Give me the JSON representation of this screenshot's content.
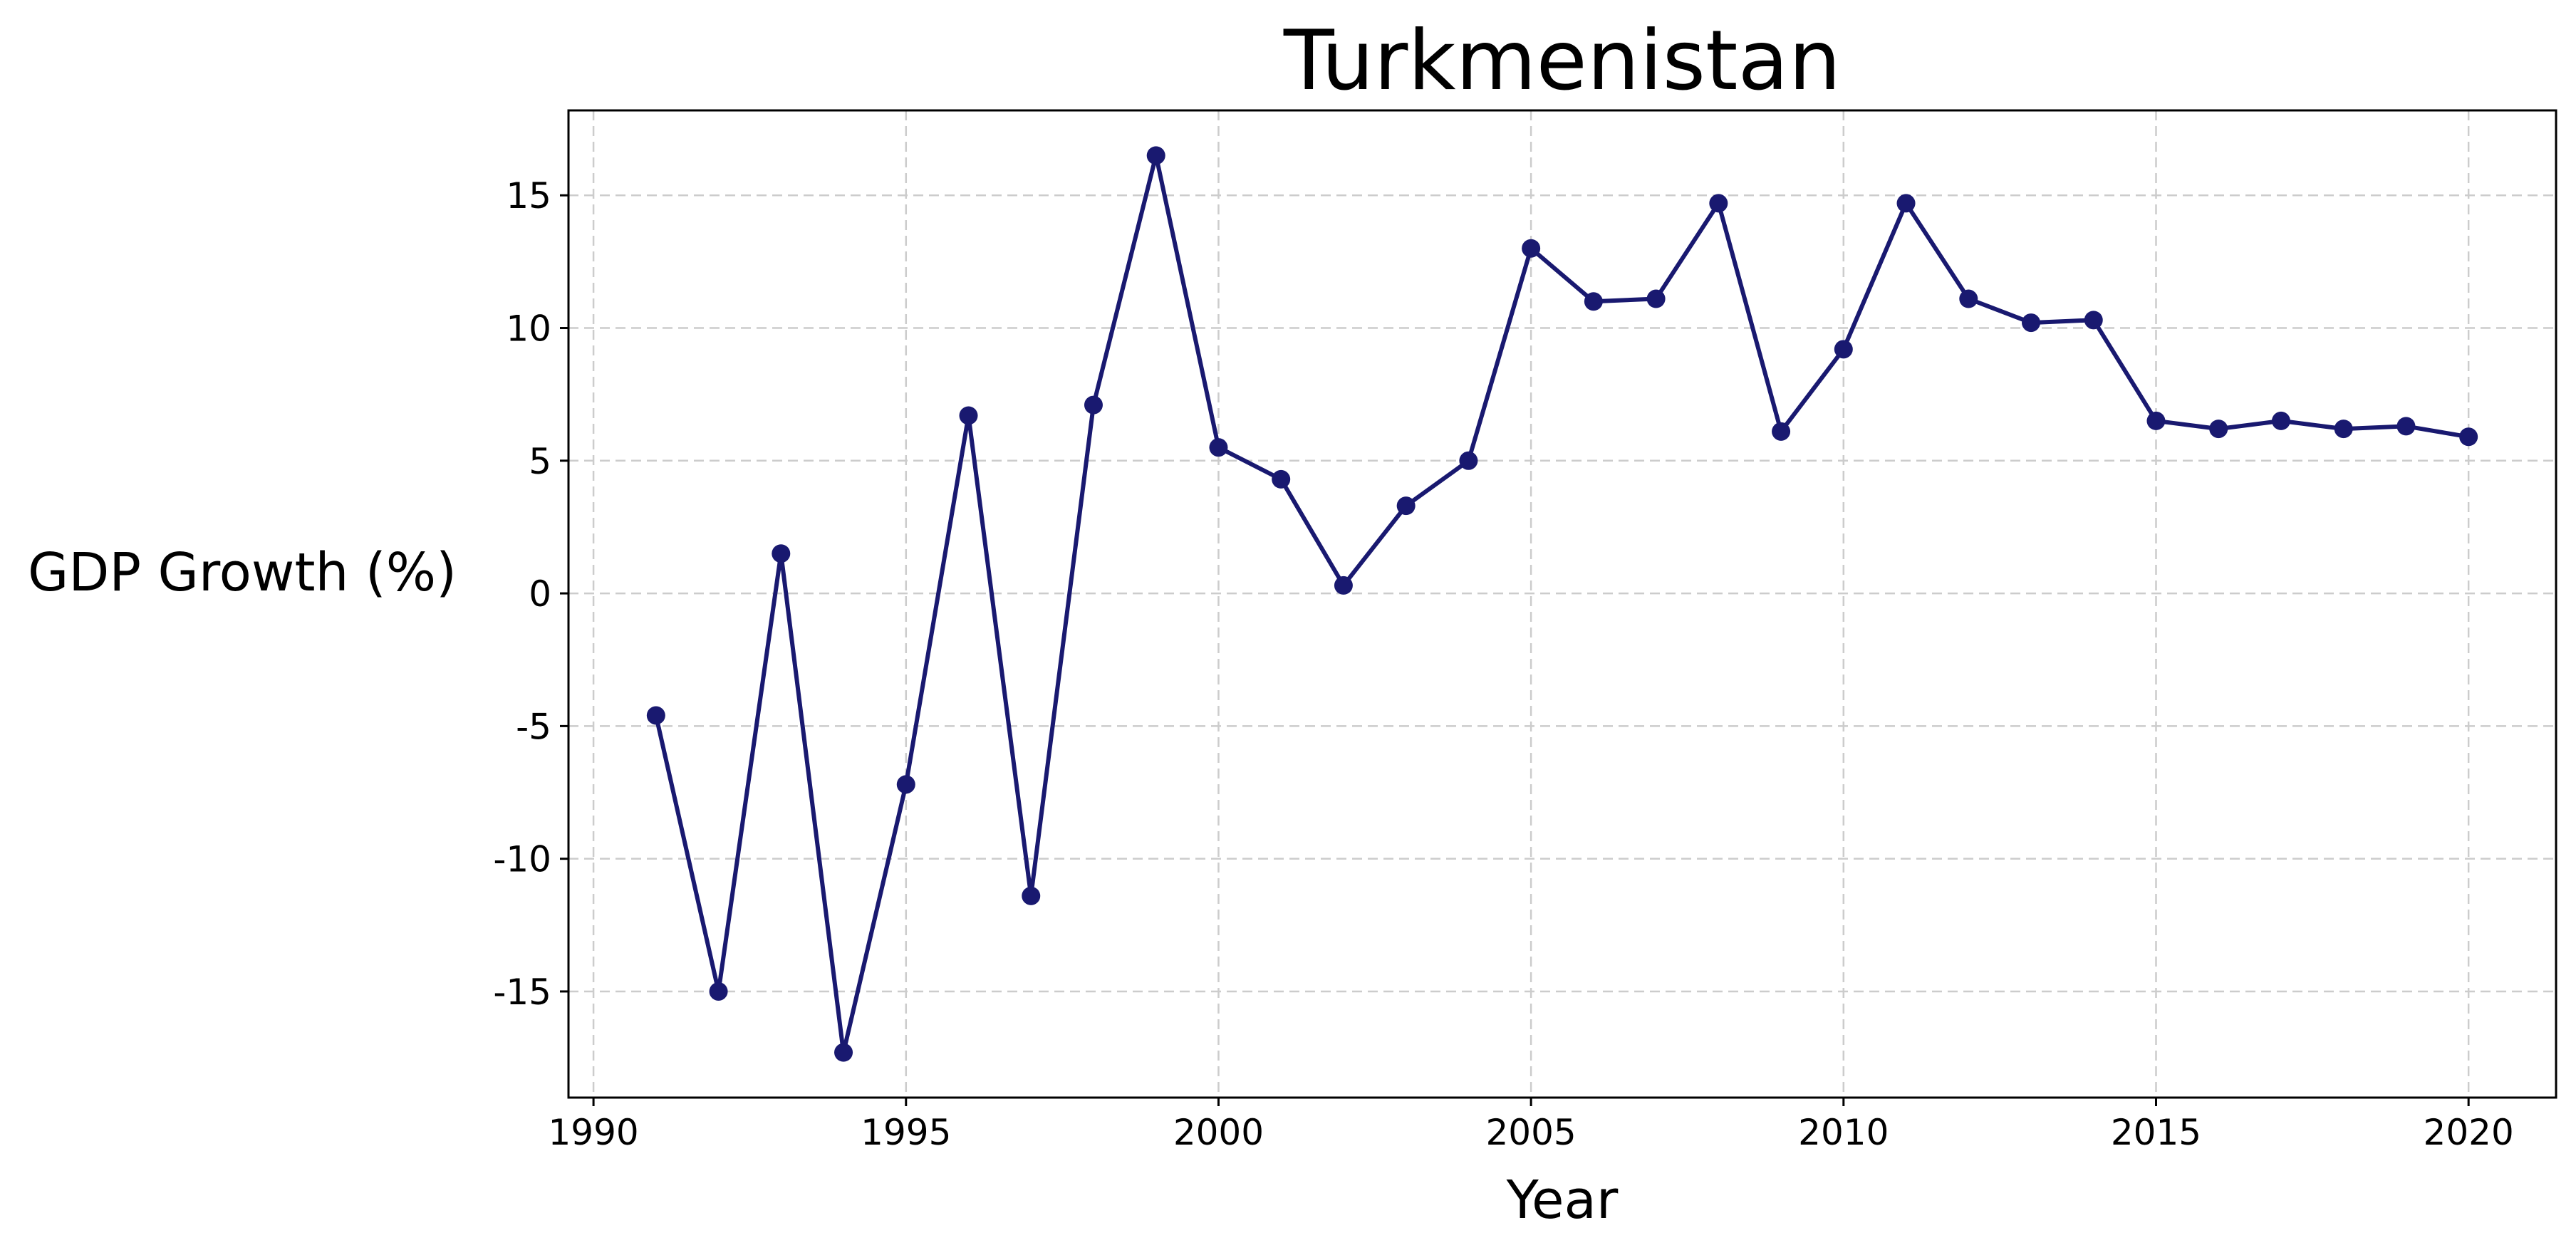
{
  "chart_data": {
    "type": "line",
    "title": "Turkmenistan",
    "xlabel": "Year",
    "ylabel": "GDP Growth (%)",
    "xlim": [
      1989.6,
      2021.4
    ],
    "ylim": [
      -19,
      18.2
    ],
    "x_ticks": [
      1990,
      1995,
      2000,
      2005,
      2010,
      2015,
      2020
    ],
    "y_ticks": [
      -15,
      -10,
      -5,
      0,
      5,
      10,
      15
    ],
    "grid": true,
    "series": [
      {
        "color": "#191970",
        "x": [
          1991,
          1992,
          1993,
          1994,
          1995,
          1996,
          1997,
          1998,
          1999,
          2000,
          2001,
          2002,
          2003,
          2004,
          2005,
          2006,
          2007,
          2008,
          2009,
          2010,
          2011,
          2012,
          2013,
          2014,
          2015,
          2016,
          2017,
          2018,
          2019,
          2020
        ],
        "values": [
          -4.6,
          -15.0,
          1.5,
          -17.3,
          -7.2,
          6.7,
          -11.4,
          7.1,
          16.5,
          5.5,
          4.3,
          0.3,
          3.3,
          5.0,
          13.0,
          11.0,
          11.1,
          14.7,
          6.1,
          9.2,
          14.7,
          11.1,
          10.2,
          10.3,
          6.5,
          6.2,
          6.5,
          6.2,
          6.3,
          5.9
        ]
      }
    ]
  }
}
